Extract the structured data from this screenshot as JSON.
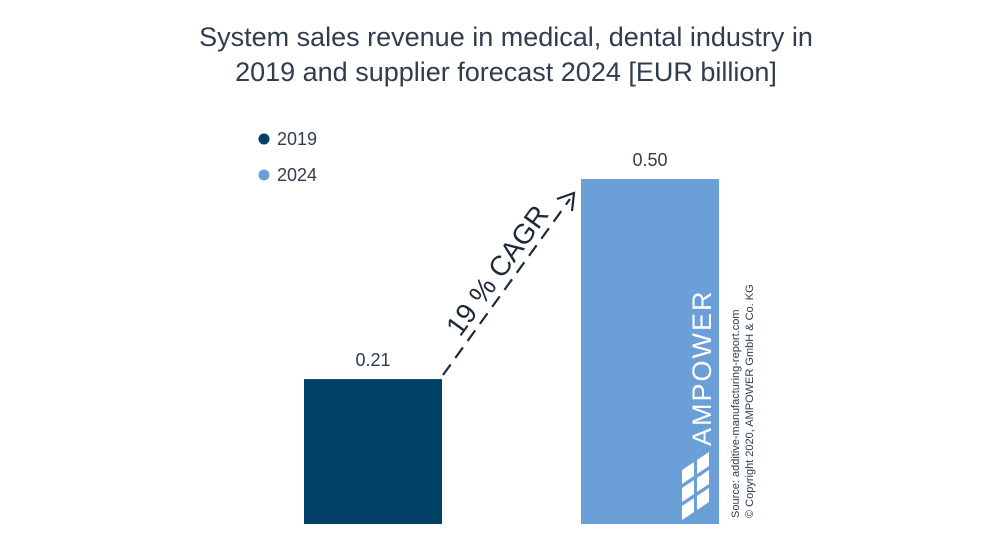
{
  "chart_data": {
    "type": "bar",
    "title_lines": [
      "System sales revenue in medical, dental industry in",
      "2019 and supplier forecast 2024 [EUR billion]"
    ],
    "categories": [
      "2019",
      "2024"
    ],
    "values": [
      0.21,
      0.5
    ],
    "value_labels": [
      "0.21",
      "0.50"
    ],
    "colors": [
      "#003f66",
      "#6b9fd8"
    ],
    "legend": [
      {
        "label": "2019",
        "color": "#003f66"
      },
      {
        "label": "2024",
        "color": "#6b9fd8"
      }
    ],
    "legend_position": "top-left",
    "annotation": "19 % CAGR",
    "ylim": [
      0,
      0.5
    ],
    "grid": false,
    "xlabel": "",
    "ylabel": ""
  },
  "watermark": {
    "logo_text": "AMPOWER",
    "source_lines": [
      "Source: additive-manufacturing-report.com",
      "© Copyright 2020, AMPOWER GmbH & Co. KG"
    ]
  }
}
